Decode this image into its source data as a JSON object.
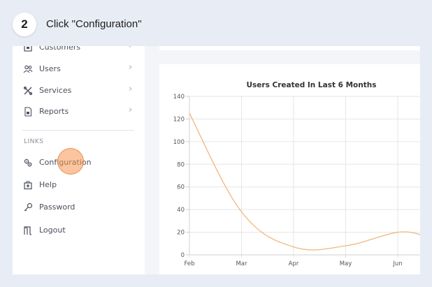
{
  "step": {
    "number": "2",
    "title": "Click \"Configuration\""
  },
  "sidebar": {
    "items": [
      {
        "label": "Customers",
        "icon": "customers-icon"
      },
      {
        "label": "Users",
        "icon": "users-icon"
      },
      {
        "label": "Services",
        "icon": "services-icon"
      },
      {
        "label": "Reports",
        "icon": "reports-icon"
      }
    ],
    "links_label": "LINKS",
    "links": [
      {
        "label": "Configuration",
        "icon": "configuration-icon"
      },
      {
        "label": "Help",
        "icon": "help-icon"
      },
      {
        "label": "Password",
        "icon": "key-icon"
      },
      {
        "label": "Logout",
        "icon": "logout-icon"
      }
    ],
    "chevron": "›"
  },
  "colors": {
    "background": "#e8ecf5",
    "line": "#f0b87e",
    "click_marker": "#f5964f"
  },
  "chart_data": {
    "type": "line",
    "title": "Users Created In Last 6 Months",
    "categories": [
      "Feb",
      "Mar",
      "Apr",
      "May",
      "Jun"
    ],
    "ylim": [
      0,
      140
    ],
    "yticks": [
      0,
      20,
      40,
      60,
      80,
      100,
      120,
      140
    ],
    "series": [
      {
        "values": [
          125,
          38,
          7,
          8,
          20
        ]
      }
    ],
    "trailing_value": 17,
    "grid": true
  }
}
